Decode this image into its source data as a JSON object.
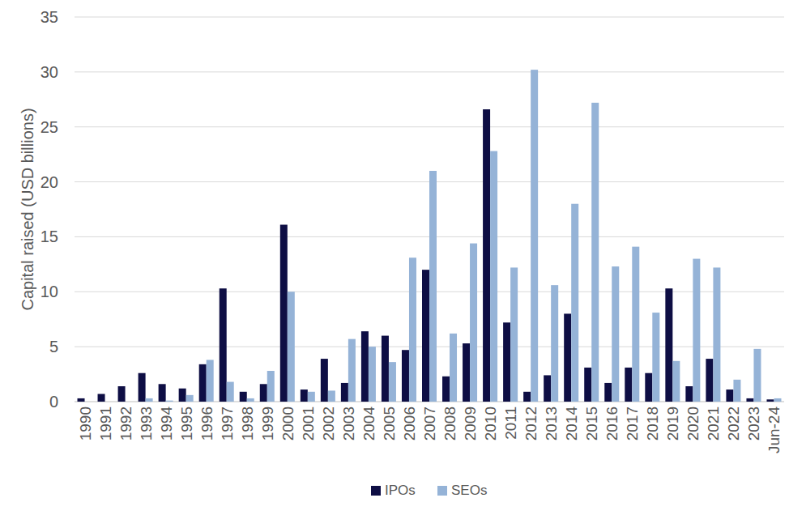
{
  "chart_data": {
    "type": "bar",
    "y_label": "Capital raised (USD billions)",
    "categories": [
      "1990",
      "1991",
      "1992",
      "1993",
      "1994",
      "1995",
      "1996",
      "1997",
      "1998",
      "1999",
      "2000",
      "2001",
      "2002",
      "2003",
      "2004",
      "2005",
      "2006",
      "2007",
      "2008",
      "2009",
      "2010",
      "2011",
      "2012",
      "2013",
      "2014",
      "2015",
      "2016",
      "2017",
      "2018",
      "2019",
      "2020",
      "2021",
      "2022",
      "2023",
      "Jun-24"
    ],
    "series": [
      {
        "name": "IPOs",
        "color": "#0e0e44",
        "values": [
          0.3,
          0.7,
          1.4,
          2.6,
          1.6,
          1.2,
          3.4,
          10.3,
          0.9,
          1.6,
          16.1,
          1.1,
          3.9,
          1.7,
          6.4,
          6.0,
          4.7,
          12.0,
          2.3,
          5.3,
          26.6,
          7.2,
          0.9,
          2.4,
          8.0,
          3.1,
          1.7,
          3.1,
          2.6,
          10.3,
          1.4,
          3.9,
          1.1,
          0.3,
          0.2
        ]
      },
      {
        "name": "SEOs",
        "color": "#95b3d7",
        "values": [
          0,
          0,
          0,
          0.3,
          0.1,
          0.6,
          3.8,
          1.8,
          0.3,
          2.8,
          10.0,
          0.9,
          1.0,
          5.7,
          5.0,
          3.6,
          13.1,
          21.0,
          6.2,
          14.4,
          22.8,
          12.2,
          30.2,
          10.6,
          18.0,
          27.2,
          12.3,
          14.1,
          8.1,
          3.7,
          13.0,
          12.2,
          2.0,
          4.8,
          0.3
        ]
      }
    ],
    "ylim": [
      0,
      35
    ],
    "yticks": [
      0,
      5,
      10,
      15,
      20,
      25,
      30,
      35
    ],
    "grid": true,
    "legend": "bottom"
  }
}
